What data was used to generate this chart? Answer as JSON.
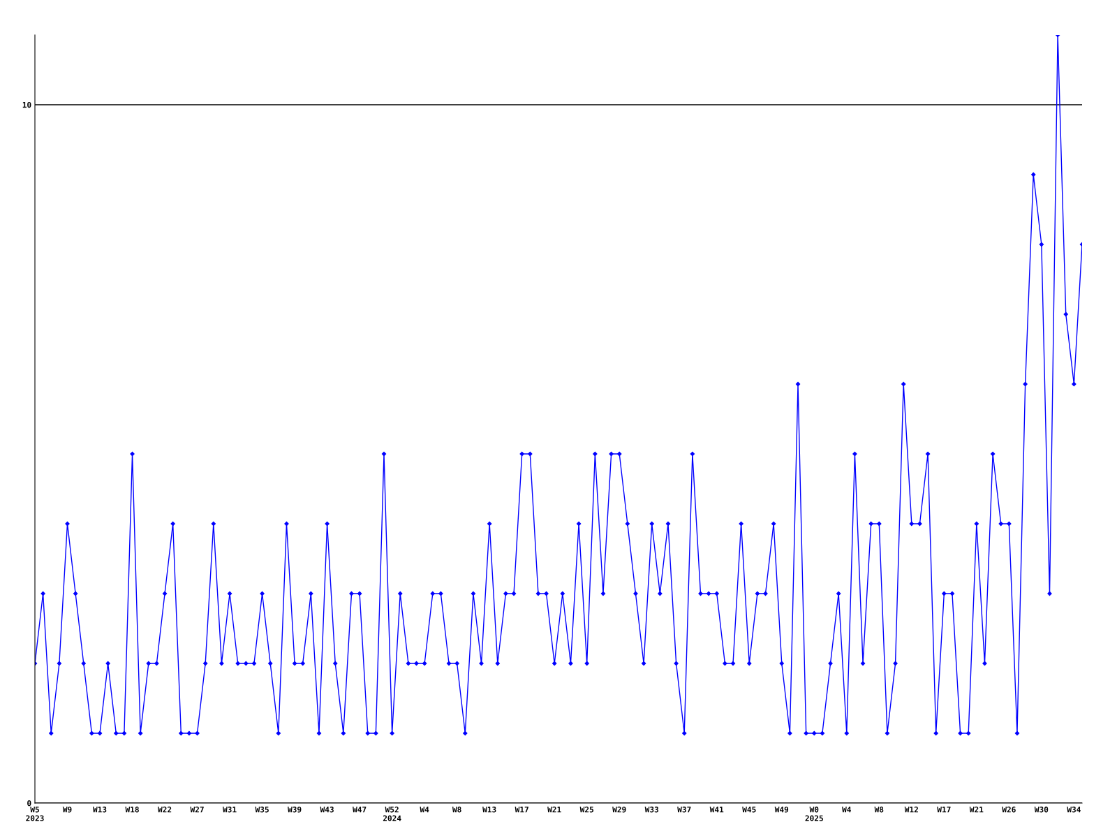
{
  "chart_data": {
    "type": "line",
    "categories": [
      "W5\n2023",
      null,
      null,
      null,
      "W9",
      null,
      null,
      null,
      "W13",
      null,
      null,
      null,
      "W18",
      null,
      null,
      null,
      "W22",
      null,
      null,
      null,
      "W27",
      null,
      null,
      null,
      "W31",
      null,
      null,
      null,
      "W35",
      null,
      null,
      null,
      "W39",
      null,
      null,
      null,
      "W43",
      null,
      null,
      null,
      "W47",
      null,
      null,
      null,
      "W52\n2024",
      null,
      null,
      null,
      "W4",
      null,
      null,
      null,
      "W8",
      null,
      null,
      null,
      "W13",
      null,
      null,
      null,
      "W17",
      null,
      null,
      null,
      "W21",
      null,
      null,
      null,
      "W25",
      null,
      null,
      null,
      "W29",
      null,
      null,
      null,
      "W33",
      null,
      null,
      null,
      "W37",
      null,
      null,
      null,
      "W41",
      null,
      null,
      null,
      "W45",
      null,
      null,
      null,
      "W49",
      null,
      null,
      null,
      "W0\n2025",
      null,
      null,
      null,
      "W4",
      null,
      null,
      null,
      "W8",
      null,
      null,
      null,
      "W12",
      null,
      null,
      null,
      "W17",
      null,
      null,
      null,
      "W21",
      null,
      null,
      null,
      "W26",
      null,
      null,
      null,
      "W30",
      null,
      null,
      null,
      "W34",
      null
    ],
    "series": [
      {
        "color": "#0000ff",
        "values": [
          2,
          3,
          1,
          2,
          4,
          3,
          2,
          1,
          1,
          2,
          1,
          1,
          5,
          1,
          2,
          2,
          3,
          4,
          1,
          1,
          1,
          2,
          4,
          2,
          3,
          2,
          2,
          2,
          3,
          2,
          1,
          4,
          2,
          2,
          3,
          1,
          4,
          2,
          1,
          3,
          3,
          1,
          1,
          5,
          1,
          3,
          2,
          2,
          2,
          3,
          3,
          2,
          2,
          1,
          3,
          2,
          4,
          2,
          3,
          3,
          5,
          5,
          3,
          3,
          2,
          3,
          2,
          4,
          2,
          5,
          3,
          5,
          5,
          4,
          3,
          2,
          4,
          3,
          4,
          2,
          1,
          5,
          3,
          3,
          3,
          2,
          2,
          4,
          2,
          3,
          3,
          4,
          2,
          1,
          6,
          1,
          1,
          1,
          2,
          3,
          1,
          5,
          2,
          4,
          4,
          1,
          2,
          6,
          4,
          4,
          5,
          1,
          3,
          3,
          1,
          1,
          4,
          2,
          5,
          4,
          4,
          1,
          6,
          9,
          8,
          3,
          11,
          7,
          6,
          8
        ]
      }
    ],
    "ylim": [
      0,
      11
    ],
    "yticks": [
      0,
      10
    ],
    "grid": "y",
    "marker": "diamond",
    "line_style": "solid",
    "legend": false
  }
}
